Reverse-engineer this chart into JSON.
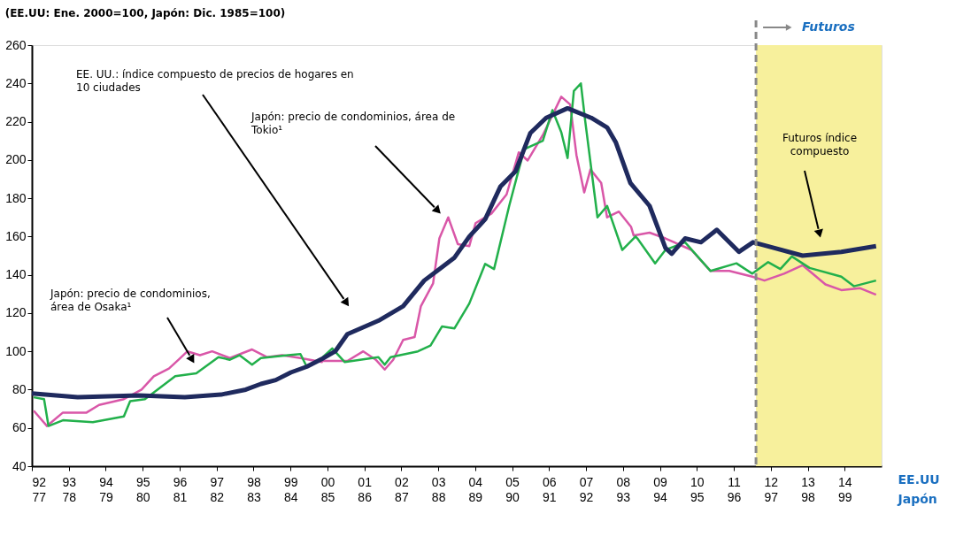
{
  "chart_data": {
    "type": "line",
    "title": "(EE.UU: Ene. 2000=100, Japón: Dic. 1985=100)",
    "xlabel": "EE.UU",
    "x2label": "Japón",
    "xlim": [
      1992,
      2015
    ],
    "xticks": [
      {
        "value": 1992,
        "label": "92"
      },
      {
        "value": 1993,
        "label": "93"
      },
      {
        "value": 1994,
        "label": "94"
      },
      {
        "value": 1995,
        "label": "95"
      },
      {
        "value": 1996,
        "label": "96"
      },
      {
        "value": 1997,
        "label": "97"
      },
      {
        "value": 1998,
        "label": "98"
      },
      {
        "value": 1999,
        "label": "99"
      },
      {
        "value": 2000,
        "label": "00"
      },
      {
        "value": 2001,
        "label": "01"
      },
      {
        "value": 2002,
        "label": "02"
      },
      {
        "value": 2003,
        "label": "03"
      },
      {
        "value": 2004,
        "label": "04"
      },
      {
        "value": 2005,
        "label": "05"
      },
      {
        "value": 2006,
        "label": "06"
      },
      {
        "value": 2007,
        "label": "07"
      },
      {
        "value": 2008,
        "label": "08"
      },
      {
        "value": 2009,
        "label": "09"
      },
      {
        "value": 2010,
        "label": "10"
      },
      {
        "value": 2011,
        "label": "11"
      },
      {
        "value": 2012,
        "label": "12"
      },
      {
        "value": 2013,
        "label": "13"
      },
      {
        "value": 2014,
        "label": "14"
      }
    ],
    "x2lim": [
      1977,
      2000
    ],
    "x2ticks": [
      {
        "value": 1977,
        "label": "77"
      },
      {
        "value": 1978,
        "label": "78"
      },
      {
        "value": 1979,
        "label": "79"
      },
      {
        "value": 1980,
        "label": "80"
      },
      {
        "value": 1981,
        "label": "81"
      },
      {
        "value": 1982,
        "label": "82"
      },
      {
        "value": 1983,
        "label": "83"
      },
      {
        "value": 1984,
        "label": "84"
      },
      {
        "value": 1985,
        "label": "85"
      },
      {
        "value": 1986,
        "label": "86"
      },
      {
        "value": 1987,
        "label": "87"
      },
      {
        "value": 1988,
        "label": "88"
      },
      {
        "value": 1989,
        "label": "89"
      },
      {
        "value": 1990,
        "label": "90"
      },
      {
        "value": 1991,
        "label": "91"
      },
      {
        "value": 1992,
        "label": "92"
      },
      {
        "value": 1993,
        "label": "93"
      },
      {
        "value": 1994,
        "label": "94"
      },
      {
        "value": 1995,
        "label": "95"
      },
      {
        "value": 1996,
        "label": "96"
      },
      {
        "value": 1997,
        "label": "97"
      },
      {
        "value": 1998,
        "label": "98"
      },
      {
        "value": 1999,
        "label": "99"
      }
    ],
    "ylim": [
      40,
      260
    ],
    "yticks": [
      40,
      60,
      80,
      100,
      120,
      140,
      160,
      180,
      200,
      220,
      240,
      260
    ],
    "grid": false,
    "marker": "none",
    "line_style": "solid",
    "series": [
      {
        "color": "#d957a8",
        "x": [
          1992.05,
          1992.41,
          1992.84,
          1993.48,
          1993.82,
          1994.49,
          1994.97,
          1995.3,
          1995.71,
          1995.97,
          1996.21,
          1996.55,
          1996.88,
          1997.36,
          1997.96,
          1998.36,
          1998.77,
          1999.27,
          1999.85,
          1999.73,
          2000.54,
          2000.97,
          2001.31,
          2001.55,
          2001.78,
          2002.05,
          2002.36,
          2002.53,
          2002.86,
          2003.03,
          2003.27,
          2003.53,
          2003.84,
          2004.01,
          2004.44,
          2004.85,
          2005.18,
          2005.42,
          2005.83,
          2006.33,
          2006.57,
          2006.74,
          2006.95,
          2007.12,
          2007.41,
          2007.57,
          2007.89,
          2008.22,
          2008.29,
          2008.72,
          2009.15,
          2009.85,
          2010.37,
          2010.88,
          2011.5,
          2011.83,
          2012.36,
          2012.86,
          2013.48,
          2013.91,
          2014.42,
          2014.85
        ],
        "values": [
          69,
          61,
          68,
          68,
          72,
          75,
          80,
          87,
          91,
          95.6,
          100,
          98,
          100,
          96.5,
          101,
          97,
          98,
          96.5,
          94.4,
          95,
          95,
          100,
          95.6,
          90.5,
          95.6,
          106,
          107.5,
          123.6,
          135.5,
          159,
          170,
          156,
          155,
          167,
          172,
          182,
          204,
          199.7,
          213,
          233,
          229,
          202.6,
          183,
          195,
          188,
          170,
          173,
          165,
          160.5,
          162,
          159,
          153,
          142,
          142,
          139,
          137,
          140.6,
          145,
          135,
          132,
          133,
          129.6
        ]
      },
      {
        "color": "#22b04b",
        "x": [
          1992.05,
          1992.33,
          1992.45,
          1992.84,
          1993.65,
          1994.49,
          1994.66,
          1995.06,
          1995.4,
          1995.88,
          1996.45,
          1997.05,
          1997.36,
          1997.62,
          1997.96,
          1998.2,
          1998.94,
          1999.27,
          1999.44,
          1999.85,
          2000.13,
          2000.47,
          2001.38,
          2001.55,
          2001.71,
          2002.45,
          2002.79,
          2003.1,
          2003.44,
          2003.84,
          2004.27,
          2004.51,
          2004.92,
          2005.18,
          2005.33,
          2005.83,
          2006.09,
          2006.33,
          2006.5,
          2006.67,
          2006.86,
          2006.98,
          2007.31,
          2007.57,
          2007.98,
          2008.34,
          2008.39,
          2008.87,
          2009.15,
          2009.68,
          2010.37,
          2011.07,
          2011.5,
          2011.93,
          2012.26,
          2012.57,
          2013.05,
          2013.91,
          2014.25,
          2014.85
        ],
        "values": [
          76,
          75,
          61,
          64,
          63,
          66,
          74,
          75,
          80,
          87,
          88.5,
          97,
          95.6,
          98,
          93,
          96.5,
          98,
          98.6,
          92,
          96.5,
          101.5,
          94.4,
          97,
          93,
          97,
          100,
          103,
          113,
          112,
          125,
          145.7,
          143,
          176,
          195,
          205.6,
          210,
          226,
          214.5,
          201,
          236,
          240,
          220,
          170,
          176,
          153,
          160,
          159,
          146,
          153,
          157,
          142,
          146,
          140.6,
          146.6,
          143,
          149.6,
          143.6,
          139,
          134,
          137
        ]
      },
      {
        "color": "#1f2a5e",
        "x": [
          1992.0,
          1993.24,
          1994.89,
          1996.14,
          1997.12,
          1997.79,
          1998.2,
          1998.6,
          1999.01,
          1999.44,
          1999.85,
          2000.21,
          2000.54,
          2001.38,
          2002.05,
          2002.62,
          2003.03,
          2003.44,
          2003.84,
          2004.27,
          2004.68,
          2005.09,
          2005.49,
          2005.92,
          2006.5,
          2007.14,
          2007.57,
          2007.81,
          2008.2,
          2008.72,
          2009.15,
          2009.32,
          2009.68,
          2010.11,
          2010.54,
          2011.14,
          2011.52,
          2012.1,
          2012.86,
          2013.91,
          2014.85
        ],
        "values": [
          78,
          76,
          77,
          76,
          77.4,
          80,
          83,
          85,
          89,
          92,
          96,
          100,
          109,
          116,
          123.6,
          137,
          143,
          149,
          160,
          169,
          186,
          194,
          214,
          222,
          227,
          222,
          217,
          209,
          188,
          176,
          154,
          151,
          159,
          157,
          163.5,
          152,
          157,
          154,
          150,
          152,
          155
        ]
      }
    ],
    "ref_lines": [
      {
        "axis": "x",
        "value": 2011.6,
        "label": "Futuros",
        "color": "#888888",
        "line_style": "dashed"
      }
    ],
    "bands": [
      {
        "axis": "x",
        "from": 2011.6,
        "to": 2015,
        "color": "#f7f09c"
      }
    ],
    "annotations": [
      "EE. UU.: índice compuesto de precios de hogares en\n10 ciudades",
      "Japón: precio de condominios, área de\nTokio¹",
      "Japón: precio de condominios,\nárea de Osaka¹",
      "Futuros índice\ncompuesto"
    ]
  }
}
